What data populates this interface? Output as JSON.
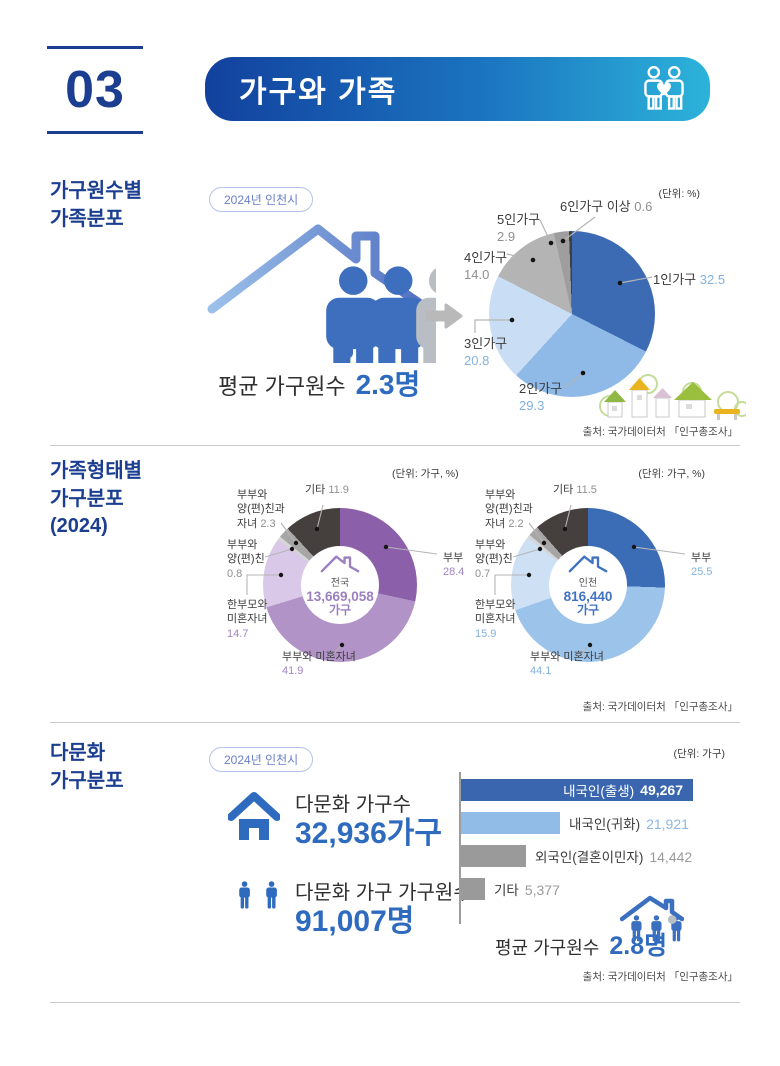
{
  "header": {
    "number": "03",
    "title": "가구와 가족",
    "icon": "family-heart-icon",
    "gradient": [
      "#12419e",
      "#2cb3da"
    ],
    "accent": "#1c3e91"
  },
  "palette": {
    "title_blue": "#1c3e91",
    "stat_blue": "#2e6bbf",
    "badge_blue": "#6b80c8"
  },
  "sections": {
    "household_size": {
      "title_lines": [
        "가구원수별",
        "가족분포"
      ],
      "badge": "2024년 인천시",
      "unit": "(단위: %)",
      "avg_label": "평균 가구원수",
      "avg_value": "2.3명",
      "source": "출처: 국가데이터처 「인구총조사」"
    },
    "family_type": {
      "title_lines": [
        "가족형태별",
        "가구분포",
        "(2024)"
      ],
      "unit_left": "(단위: 가구, %)",
      "unit_right": "(단위: 가구, %)",
      "source": "출처: 국가데이터처 「인구총조사」"
    },
    "multicultural": {
      "title_lines": [
        "다문화",
        "가구분포"
      ],
      "badge": "2024년 인천시",
      "unit": "(단위: 가구)",
      "households_label": "다문화 가구수",
      "households_value": "32,936가구",
      "members_label": "다문화 가구 가구원수",
      "members_value": "91,007명",
      "avg_label": "평균 가구원수",
      "avg_value": "2.8명",
      "source": "출처: 국가데이터처 「인구총조사」"
    }
  },
  "donut_label_lines": {
    "other": "기타",
    "couple": "부부",
    "couple_parents_child": [
      "부부와",
      "양(편)친과",
      "자녀"
    ],
    "couple_parents": [
      "부부와",
      "양(편)친"
    ],
    "single_parent": [
      "한부모와",
      "미혼자녀"
    ],
    "couple_child": "부부와 미혼자녀"
  },
  "chart_data": [
    {
      "id": "household-size-pie",
      "type": "pie",
      "title": "가구원수별 가족분포 (2024년 인천시)",
      "unit": "%",
      "labels": [
        "1인가구",
        "2인가구",
        "3인가구",
        "4인가구",
        "5인가구",
        "6인가구 이상"
      ],
      "values": [
        32.5,
        29.3,
        20.8,
        14.0,
        2.9,
        0.6
      ],
      "display_values": [
        "32.5",
        "29.3",
        "20.8",
        "14.0",
        "2.9",
        "0.6"
      ],
      "colors": [
        "#3c6ab3",
        "#8fbae7",
        "#c9ddf4",
        "#b4b4b4",
        "#9e9e9e",
        "#3f3f3f"
      ],
      "start_angle_deg": 0,
      "direction": "clockwise",
      "legend_position": "callout-labels"
    },
    {
      "id": "family-type-donut-national",
      "type": "pie",
      "subtype": "donut",
      "title": "가족형태별 가구분포 (2024) - 전국",
      "unit": "가구, %",
      "labels": [
        "부부",
        "부부와 미혼자녀",
        "한부모와 미혼자녀",
        "부부와 양(편)친",
        "부부와 양(편)친과 자녀",
        "기타"
      ],
      "values": [
        28.4,
        41.9,
        14.7,
        0.8,
        2.3,
        11.9
      ],
      "display_values": [
        "28.4",
        "41.9",
        "14.7",
        "0.8",
        "2.3",
        "11.9"
      ],
      "colors": [
        "#8b5fa9",
        "#b193c8",
        "#d9c8e7",
        "#d6d6d6",
        "#a6a6a6",
        "#453f3d"
      ],
      "center": {
        "region": "전국",
        "total": "13,669,058",
        "unit": "가구"
      },
      "legend_position": "callout-labels"
    },
    {
      "id": "family-type-donut-incheon",
      "type": "pie",
      "subtype": "donut",
      "title": "가족형태별 가구분포 (2024) - 인천",
      "unit": "가구, %",
      "labels": [
        "부부",
        "부부와 미혼자녀",
        "한부모와 미혼자녀",
        "부부와 양(편)친",
        "부부와 양(편)친과 자녀",
        "기타"
      ],
      "values": [
        25.5,
        44.1,
        15.9,
        0.7,
        2.2,
        11.5
      ],
      "display_values": [
        "25.5",
        "44.1",
        "15.9",
        "0.7",
        "2.2",
        "11.5"
      ],
      "colors": [
        "#3a6db6",
        "#9cc3e9",
        "#cde0f4",
        "#d6d6d6",
        "#a6a6a6",
        "#453f3d"
      ],
      "center": {
        "region": "인천",
        "total": "816,440",
        "unit": "가구"
      },
      "legend_position": "callout-labels"
    },
    {
      "id": "multicultural-bar",
      "type": "bar",
      "orientation": "horizontal",
      "title": "다문화 가구분포 (2024년 인천시)",
      "unit": "가구",
      "categories": [
        "내국인(출생)",
        "내국인(귀화)",
        "외국인(결혼이민자)",
        "기타"
      ],
      "values": [
        49267,
        21921,
        14442,
        5377
      ],
      "value_labels": [
        "49,267",
        "21,921",
        "14,442",
        "5,377"
      ],
      "colors": [
        "#3a66b0",
        "#92bce8",
        "#9a9a9a",
        "#9a9a9a"
      ],
      "name_colors": [
        "#ffffff",
        "#3c3c3c",
        "#3c3c3c",
        "#3c3c3c"
      ],
      "value_colors": [
        "#ffffff",
        "#8cb6e4",
        "#9b9b9b",
        "#9b9b9b"
      ],
      "label_inside": [
        true,
        false,
        false,
        false
      ],
      "xlim": [
        0,
        50000
      ],
      "grid": false
    }
  ]
}
